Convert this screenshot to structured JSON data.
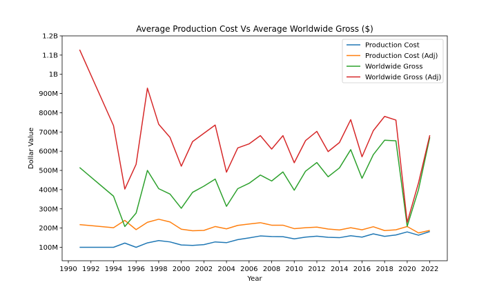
{
  "chart_data": {
    "type": "line",
    "title": "Average Production Cost Vs Average Worldwide Gross ($)",
    "xlabel": "Year",
    "ylabel": "Dollar Value",
    "xlim": [
      1989.45,
      2023.55
    ],
    "ylim": [
      30000000,
      1200000000
    ],
    "x_ticks": [
      1990,
      1992,
      1994,
      1996,
      1998,
      2000,
      2002,
      2004,
      2006,
      2008,
      2010,
      2012,
      2014,
      2016,
      2018,
      2020,
      2022
    ],
    "y_ticks": [
      {
        "value": 100000000,
        "label": "100M"
      },
      {
        "value": 200000000,
        "label": "200M"
      },
      {
        "value": 300000000,
        "label": "300M"
      },
      {
        "value": 400000000,
        "label": "400M"
      },
      {
        "value": 500000000,
        "label": "500M"
      },
      {
        "value": 600000000,
        "label": "600M"
      },
      {
        "value": 700000000,
        "label": "700M"
      },
      {
        "value": 800000000,
        "label": "800M"
      },
      {
        "value": 900000000,
        "label": "900M"
      },
      {
        "value": 1000000000,
        "label": "1B"
      },
      {
        "value": 1100000000,
        "label": "1.1B"
      },
      {
        "value": 1200000000,
        "label": "1.2B"
      }
    ],
    "grid": false,
    "legend_position": "top-right",
    "x": [
      1991,
      1994,
      1995,
      1996,
      1997,
      1998,
      1999,
      2000,
      2001,
      2002,
      2003,
      2004,
      2005,
      2006,
      2007,
      2008,
      2009,
      2010,
      2011,
      2012,
      2013,
      2014,
      2015,
      2016,
      2017,
      2018,
      2019,
      2020,
      2021,
      2022
    ],
    "series": [
      {
        "name": "Production Cost",
        "color": "#1f77b4",
        "values": [
          100000000,
          100000000,
          122000000,
          100000000,
          123000000,
          135000000,
          128000000,
          112000000,
          110000000,
          114000000,
          128000000,
          124000000,
          140000000,
          149000000,
          159000000,
          156000000,
          155000000,
          144000000,
          153000000,
          158000000,
          152000000,
          150000000,
          160000000,
          153000000,
          170000000,
          157000000,
          164000000,
          180000000,
          163000000,
          182000000
        ]
      },
      {
        "name": "Production Cost (Adj)",
        "color": "#ff7f0e",
        "values": [
          218000000,
          202000000,
          240000000,
          192000000,
          230000000,
          246000000,
          232000000,
          194000000,
          186000000,
          188000000,
          208000000,
          196000000,
          214000000,
          221000000,
          228000000,
          215000000,
          215000000,
          197000000,
          202000000,
          205000000,
          195000000,
          190000000,
          202000000,
          191000000,
          207000000,
          187000000,
          191000000,
          208000000,
          175000000,
          188000000
        ]
      },
      {
        "name": "Worldwide Gross",
        "color": "#2ca02c",
        "values": [
          515000000,
          366000000,
          208000000,
          278000000,
          500000000,
          405000000,
          377000000,
          303000000,
          386000000,
          418000000,
          455000000,
          313000000,
          405000000,
          433000000,
          476000000,
          445000000,
          492000000,
          397000000,
          496000000,
          541000000,
          467000000,
          513000000,
          608000000,
          459000000,
          582000000,
          657000000,
          654000000,
          210000000,
          400000000,
          672000000
        ]
      },
      {
        "name": "Worldwide Gross (Adj)",
        "color": "#d62728",
        "values": [
          1128000000,
          733000000,
          403000000,
          532000000,
          928000000,
          740000000,
          672000000,
          522000000,
          650000000,
          693000000,
          736000000,
          491000000,
          617000000,
          638000000,
          681000000,
          611000000,
          681000000,
          540000000,
          655000000,
          703000000,
          598000000,
          645000000,
          764000000,
          571000000,
          707000000,
          781000000,
          762000000,
          230000000,
          435000000,
          683000000
        ]
      }
    ]
  }
}
